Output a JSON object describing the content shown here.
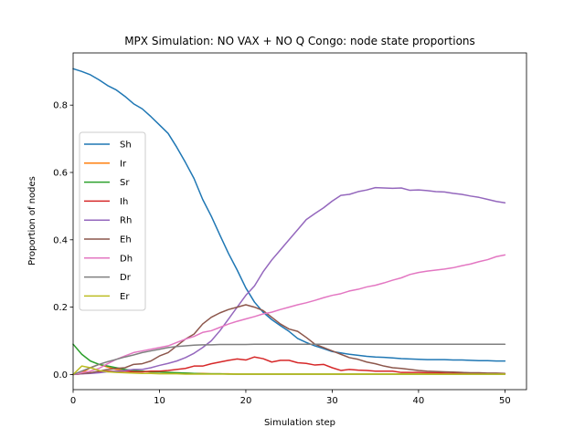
{
  "chart_data": {
    "type": "line",
    "title": "MPX Simulation: NO VAX + NO Q Congo: node state proportions",
    "xlabel": "Simulation step",
    "ylabel": "Proportion of nodes",
    "xlim": [
      0,
      52.5
    ],
    "ylim": [
      -0.045,
      0.955
    ],
    "xticks": [
      0,
      10,
      20,
      30,
      40,
      50
    ],
    "yticks": [
      0.0,
      0.2,
      0.4,
      0.6,
      0.8
    ],
    "grid": false,
    "legend_position": "center-left",
    "x": [
      0,
      1,
      2,
      3,
      4,
      5,
      6,
      7,
      8,
      9,
      10,
      11,
      12,
      13,
      14,
      15,
      16,
      17,
      18,
      19,
      20,
      21,
      22,
      23,
      24,
      25,
      26,
      27,
      28,
      29,
      30,
      31,
      32,
      33,
      34,
      35,
      36,
      37,
      38,
      39,
      40,
      41,
      42,
      43,
      44,
      45,
      46,
      47,
      48,
      49,
      50
    ],
    "series": [
      {
        "name": "Sh",
        "color": "#1f77b4",
        "values": [
          0.908,
          0.9,
          0.89,
          0.875,
          0.858,
          0.845,
          0.826,
          0.804,
          0.789,
          0.766,
          0.741,
          0.716,
          0.675,
          0.63,
          0.582,
          0.52,
          0.47,
          0.414,
          0.359,
          0.31,
          0.257,
          0.215,
          0.185,
          0.163,
          0.145,
          0.128,
          0.107,
          0.095,
          0.085,
          0.077,
          0.068,
          0.064,
          0.06,
          0.057,
          0.054,
          0.052,
          0.051,
          0.049,
          0.047,
          0.046,
          0.045,
          0.044,
          0.044,
          0.044,
          0.043,
          0.043,
          0.042,
          0.041,
          0.041,
          0.04,
          0.04
        ]
      },
      {
        "name": "Ir",
        "color": "#ff7f0e",
        "values": [
          0.0,
          0.005,
          0.02,
          0.03,
          0.022,
          0.015,
          0.012,
          0.01,
          0.009,
          0.008,
          0.007,
          0.006,
          0.005,
          0.004,
          0.003,
          0.003,
          0.002,
          0.002,
          0.002,
          0.001,
          0.001,
          0.001,
          0.001,
          0.001,
          0.001,
          0.001,
          0.001,
          0.001,
          0.001,
          0.001,
          0.001,
          0.001,
          0.001,
          0.001,
          0.001,
          0.001,
          0.001,
          0.001,
          0.001,
          0.001,
          0.001,
          0.001,
          0.001,
          0.001,
          0.001,
          0.001,
          0.001,
          0.001,
          0.001,
          0.001,
          0.001
        ]
      },
      {
        "name": "Sr",
        "color": "#2ca02c",
        "values": [
          0.09,
          0.06,
          0.04,
          0.03,
          0.025,
          0.02,
          0.015,
          0.012,
          0.01,
          0.008,
          0.007,
          0.006,
          0.005,
          0.004,
          0.003,
          0.002,
          0.002,
          0.002,
          0.001,
          0.001,
          0.001,
          0.001,
          0.001,
          0.001,
          0.001,
          0.001,
          0.001,
          0.001,
          0.001,
          0.001,
          0.001,
          0.001,
          0.001,
          0.001,
          0.001,
          0.001,
          0.001,
          0.001,
          0.001,
          0.001,
          0.001,
          0.001,
          0.001,
          0.001,
          0.001,
          0.001,
          0.001,
          0.001,
          0.001,
          0.001,
          0.001
        ]
      },
      {
        "name": "Ih",
        "color": "#d62728",
        "values": [
          0.0,
          0.002,
          0.005,
          0.008,
          0.01,
          0.01,
          0.01,
          0.008,
          0.008,
          0.01,
          0.01,
          0.012,
          0.015,
          0.018,
          0.025,
          0.025,
          0.032,
          0.037,
          0.042,
          0.046,
          0.043,
          0.052,
          0.047,
          0.037,
          0.042,
          0.042,
          0.035,
          0.033,
          0.028,
          0.03,
          0.02,
          0.012,
          0.015,
          0.013,
          0.012,
          0.01,
          0.01,
          0.01,
          0.006,
          0.006,
          0.006,
          0.005,
          0.005,
          0.004,
          0.003,
          0.003,
          0.002,
          0.002,
          0.002,
          0.002,
          0.002
        ]
      },
      {
        "name": "Rh",
        "color": "#9467bd",
        "values": [
          0.0,
          0.002,
          0.003,
          0.005,
          0.008,
          0.01,
          0.012,
          0.015,
          0.015,
          0.02,
          0.027,
          0.033,
          0.04,
          0.05,
          0.063,
          0.08,
          0.1,
          0.13,
          0.165,
          0.2,
          0.235,
          0.263,
          0.305,
          0.34,
          0.37,
          0.4,
          0.43,
          0.46,
          0.478,
          0.495,
          0.515,
          0.532,
          0.535,
          0.543,
          0.548,
          0.555,
          0.554,
          0.553,
          0.554,
          0.547,
          0.548,
          0.546,
          0.543,
          0.542,
          0.538,
          0.535,
          0.53,
          0.526,
          0.52,
          0.514,
          0.51
        ]
      },
      {
        "name": "Eh",
        "color": "#8c564b",
        "values": [
          0.0,
          0.003,
          0.005,
          0.01,
          0.015,
          0.018,
          0.02,
          0.03,
          0.032,
          0.04,
          0.055,
          0.065,
          0.085,
          0.105,
          0.12,
          0.15,
          0.17,
          0.183,
          0.193,
          0.2,
          0.207,
          0.2,
          0.19,
          0.17,
          0.15,
          0.135,
          0.128,
          0.11,
          0.09,
          0.08,
          0.07,
          0.06,
          0.05,
          0.045,
          0.037,
          0.032,
          0.025,
          0.02,
          0.018,
          0.015,
          0.012,
          0.01,
          0.009,
          0.008,
          0.007,
          0.006,
          0.005,
          0.005,
          0.004,
          0.004,
          0.003
        ]
      },
      {
        "name": "Dh",
        "color": "#e377c2",
        "values": [
          0.0,
          0.005,
          0.01,
          0.018,
          0.032,
          0.045,
          0.055,
          0.065,
          0.07,
          0.075,
          0.08,
          0.085,
          0.095,
          0.105,
          0.113,
          0.125,
          0.13,
          0.14,
          0.15,
          0.158,
          0.165,
          0.172,
          0.18,
          0.185,
          0.193,
          0.2,
          0.207,
          0.213,
          0.22,
          0.228,
          0.235,
          0.24,
          0.248,
          0.253,
          0.26,
          0.265,
          0.272,
          0.28,
          0.287,
          0.297,
          0.303,
          0.307,
          0.31,
          0.313,
          0.317,
          0.323,
          0.328,
          0.335,
          0.341,
          0.35,
          0.355
        ]
      },
      {
        "name": "Dr",
        "color": "#7f7f7f",
        "values": [
          0.0,
          0.01,
          0.02,
          0.03,
          0.038,
          0.045,
          0.052,
          0.058,
          0.065,
          0.07,
          0.075,
          0.08,
          0.083,
          0.085,
          0.087,
          0.088,
          0.088,
          0.089,
          0.089,
          0.089,
          0.089,
          0.09,
          0.09,
          0.09,
          0.09,
          0.09,
          0.09,
          0.09,
          0.09,
          0.09,
          0.09,
          0.09,
          0.09,
          0.09,
          0.09,
          0.09,
          0.09,
          0.09,
          0.09,
          0.09,
          0.09,
          0.09,
          0.09,
          0.09,
          0.09,
          0.09,
          0.09,
          0.09,
          0.09,
          0.09,
          0.09
        ]
      },
      {
        "name": "Er",
        "color": "#bcbd22",
        "values": [
          0.0,
          0.025,
          0.02,
          0.012,
          0.008,
          0.006,
          0.005,
          0.004,
          0.003,
          0.003,
          0.002,
          0.002,
          0.002,
          0.001,
          0.001,
          0.001,
          0.001,
          0.001,
          0.001,
          0.001,
          0.001,
          0.001,
          0.001,
          0.001,
          0.001,
          0.001,
          0.001,
          0.001,
          0.001,
          0.001,
          0.001,
          0.001,
          0.001,
          0.001,
          0.001,
          0.001,
          0.001,
          0.001,
          0.001,
          0.001,
          0.001,
          0.001,
          0.001,
          0.001,
          0.001,
          0.001,
          0.001,
          0.001,
          0.001,
          0.001,
          0.001
        ]
      }
    ]
  }
}
